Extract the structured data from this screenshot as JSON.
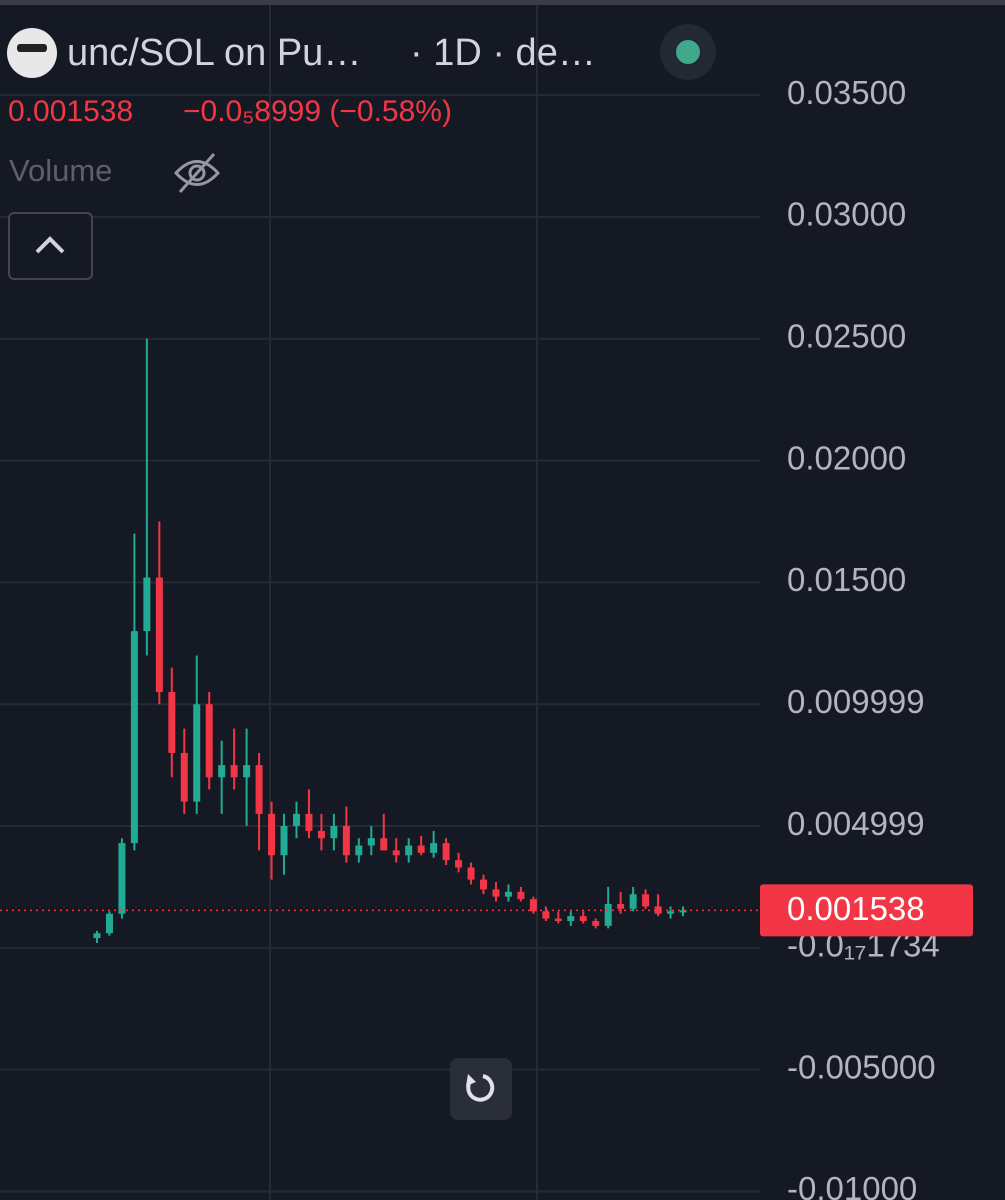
{
  "chart_data": {
    "type": "candlestick",
    "title": "unc/SOL on Pu…",
    "interval": "· 1D · de…",
    "last_price": 0.001538,
    "change": "−0.0₅8999 (−0.58%)",
    "volume_label": "Volume",
    "up_color": "#22ab94",
    "down_color": "#f23645",
    "ylim": [
      -0.01035,
      0.0387
    ],
    "yticks": [
      {
        "value": 0.035,
        "label": "0.03500"
      },
      {
        "value": 0.03,
        "label": "0.03000"
      },
      {
        "value": 0.025,
        "label": "0.02500"
      },
      {
        "value": 0.02,
        "label": "0.02000"
      },
      {
        "value": 0.015,
        "label": "0.01500"
      },
      0.009999,
      0.004999,
      {
        "value": -1.734e-18,
        "label": "-0.0₁₇1734"
      },
      {
        "value": -0.005,
        "label": "-0.005000"
      },
      {
        "value": -0.01,
        "label": "-0.01000"
      }
    ],
    "grid": true,
    "open": [
      0.0004,
      0.0006,
      0.0014,
      0.0043,
      0.013,
      0.0152,
      0.0105,
      0.008,
      0.006,
      0.01,
      0.007,
      0.0075,
      0.007,
      0.0075,
      0.0055,
      0.0038,
      0.005,
      0.0055,
      0.0048,
      0.0045,
      0.005,
      0.0038,
      0.0042,
      0.0045,
      0.004,
      0.0038,
      0.0042,
      0.0039,
      0.0043,
      0.0036,
      0.0033,
      0.0028,
      0.0024,
      0.0021,
      0.0023,
      0.002,
      0.0015,
      0.0012,
      0.0011,
      0.0013,
      0.0011,
      0.0009,
      0.0018,
      0.0016,
      0.0022,
      0.0017,
      0.0014,
      0.0015
    ],
    "high": [
      0.0007,
      0.0015,
      0.0045,
      0.017,
      0.025,
      0.0175,
      0.0115,
      0.009,
      0.012,
      0.0105,
      0.0085,
      0.009,
      0.009,
      0.008,
      0.006,
      0.0055,
      0.006,
      0.0065,
      0.0055,
      0.0055,
      0.0058,
      0.0045,
      0.005,
      0.0055,
      0.0045,
      0.0045,
      0.0046,
      0.0048,
      0.0045,
      0.0039,
      0.0035,
      0.003,
      0.0027,
      0.0026,
      0.0025,
      0.0021,
      0.0017,
      0.0015,
      0.0015,
      0.0015,
      0.0012,
      0.0025,
      0.0023,
      0.0025,
      0.0024,
      0.0022,
      0.0017,
      0.0017
    ],
    "low": [
      0.0002,
      0.0005,
      0.0012,
      0.004,
      0.012,
      0.01,
      0.007,
      0.0055,
      0.0055,
      0.0065,
      0.0055,
      0.0065,
      0.005,
      0.004,
      0.0028,
      0.003,
      0.0045,
      0.0045,
      0.004,
      0.004,
      0.0035,
      0.0035,
      0.0038,
      0.004,
      0.0035,
      0.0035,
      0.0038,
      0.0037,
      0.0034,
      0.0031,
      0.0026,
      0.0022,
      0.0019,
      0.0019,
      0.0019,
      0.0014,
      0.0011,
      0.001,
      0.0009,
      0.001,
      0.0008,
      0.0008,
      0.0014,
      0.0015,
      0.0016,
      0.0013,
      0.0012,
      0.0013
    ],
    "close": [
      0.0006,
      0.0014,
      0.0043,
      0.013,
      0.0152,
      0.0105,
      0.008,
      0.006,
      0.01,
      0.007,
      0.0075,
      0.007,
      0.0075,
      0.0055,
      0.0038,
      0.005,
      0.0055,
      0.0048,
      0.0045,
      0.005,
      0.0038,
      0.0042,
      0.0045,
      0.004,
      0.0038,
      0.0042,
      0.0039,
      0.0043,
      0.0036,
      0.0033,
      0.0028,
      0.0024,
      0.0021,
      0.0023,
      0.002,
      0.0015,
      0.0012,
      0.0011,
      0.0013,
      0.0011,
      0.0009,
      0.0018,
      0.0016,
      0.0022,
      0.0017,
      0.0014,
      0.0015,
      0.001538
    ]
  }
}
